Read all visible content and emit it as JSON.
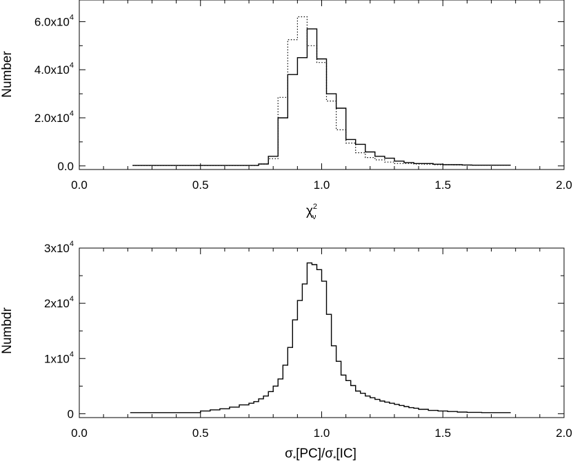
{
  "chart_data": [
    {
      "type": "histogram",
      "xlabel": "χ",
      "xlabel_sup": "2",
      "xlabel_sub": "ν",
      "ylabel": "Number",
      "xlim": [
        0.0,
        2.0
      ],
      "ylim": [
        -1500,
        69000
      ],
      "xticks": [
        {
          "v": 0.0,
          "label": "0.0"
        },
        {
          "v": 0.5,
          "label": "0.5"
        },
        {
          "v": 1.0,
          "label": "1.0"
        },
        {
          "v": 1.5,
          "label": "1.5"
        },
        {
          "v": 2.0,
          "label": "2.0"
        }
      ],
      "x_minor_step": 0.1,
      "yticks": [
        {
          "v": 0,
          "label": "0.0",
          "sup": ""
        },
        {
          "v": 20000,
          "label": "2.0x10",
          "sup": "4"
        },
        {
          "v": 40000,
          "label": "4.0x10",
          "sup": "4"
        },
        {
          "v": 60000,
          "label": "6.0x10",
          "sup": "4"
        }
      ],
      "y_minor_step": 10000,
      "series": [
        {
          "style": "solid",
          "x": [
            0.22,
            0.74,
            0.78,
            0.82,
            0.86,
            0.9,
            0.94,
            0.98,
            1.02,
            1.06,
            1.1,
            1.14,
            1.18,
            1.22,
            1.26,
            1.3,
            1.34,
            1.38,
            1.42,
            1.46,
            1.5,
            1.54,
            1.58,
            1.62,
            1.66,
            1.78
          ],
          "values": [
            200,
            800,
            4000,
            20000,
            38000,
            45000,
            57000,
            44500,
            30000,
            24000,
            11000,
            9000,
            5800,
            4000,
            3200,
            2000,
            1400,
            1000,
            1000,
            700,
            500,
            500,
            400,
            300,
            300
          ]
        },
        {
          "style": "dotted",
          "x": [
            0.22,
            0.74,
            0.78,
            0.82,
            0.86,
            0.9,
            0.94,
            0.98,
            1.02,
            1.06,
            1.1,
            1.14,
            1.18,
            1.22,
            1.26,
            1.3,
            1.34,
            1.38,
            1.42,
            1.46,
            1.5,
            1.54,
            1.58,
            1.62,
            1.66,
            1.78
          ],
          "values": [
            200,
            800,
            3000,
            28500,
            52500,
            62000,
            50000,
            43000,
            27000,
            15000,
            9500,
            5500,
            3500,
            2500,
            1600,
            1000,
            1000,
            800,
            700,
            500,
            500,
            400,
            300,
            300,
            300
          ]
        }
      ]
    },
    {
      "type": "histogram",
      "xlabel": "σ",
      "xlabel_parts": [
        "σ",
        "*",
        "[PC]/σ",
        "*",
        "[IC]"
      ],
      "ylabel": "Numbdr",
      "xlim": [
        0.0,
        2.0
      ],
      "ylim": [
        -700,
        30000
      ],
      "xticks": [
        {
          "v": 0.0,
          "label": "0.0"
        },
        {
          "v": 0.5,
          "label": "0.5"
        },
        {
          "v": 1.0,
          "label": "1.0"
        },
        {
          "v": 1.5,
          "label": "1.5"
        },
        {
          "v": 2.0,
          "label": "2.0"
        }
      ],
      "x_minor_step": 0.1,
      "yticks": [
        {
          "v": 0,
          "label": "0",
          "sup": ""
        },
        {
          "v": 10000,
          "label": "1x10",
          "sup": "4"
        },
        {
          "v": 20000,
          "label": "2x10",
          "sup": "4"
        },
        {
          "v": 30000,
          "label": "3x10",
          "sup": "4"
        }
      ],
      "y_minor_step": 5000,
      "series": [
        {
          "style": "solid",
          "x": [
            0.21,
            0.5,
            0.54,
            0.58,
            0.62,
            0.66,
            0.7,
            0.72,
            0.74,
            0.76,
            0.78,
            0.8,
            0.82,
            0.84,
            0.86,
            0.88,
            0.9,
            0.92,
            0.94,
            0.96,
            0.98,
            1.0,
            1.02,
            1.04,
            1.06,
            1.08,
            1.1,
            1.12,
            1.14,
            1.16,
            1.18,
            1.2,
            1.22,
            1.24,
            1.26,
            1.28,
            1.3,
            1.32,
            1.34,
            1.36,
            1.38,
            1.4,
            1.44,
            1.48,
            1.52,
            1.56,
            1.6,
            1.66,
            1.78
          ],
          "values": [
            200,
            500,
            700,
            900,
            1200,
            1600,
            1900,
            2200,
            2700,
            3200,
            4000,
            5000,
            6300,
            8800,
            12000,
            17000,
            20500,
            23500,
            27300,
            27000,
            26100,
            24000,
            18000,
            12300,
            9500,
            7000,
            6000,
            5100,
            4100,
            3700,
            3200,
            2900,
            2600,
            2300,
            2100,
            1900,
            1700,
            1500,
            1300,
            1100,
            1000,
            800,
            600,
            500,
            400,
            300,
            250,
            200
          ]
        }
      ]
    }
  ]
}
